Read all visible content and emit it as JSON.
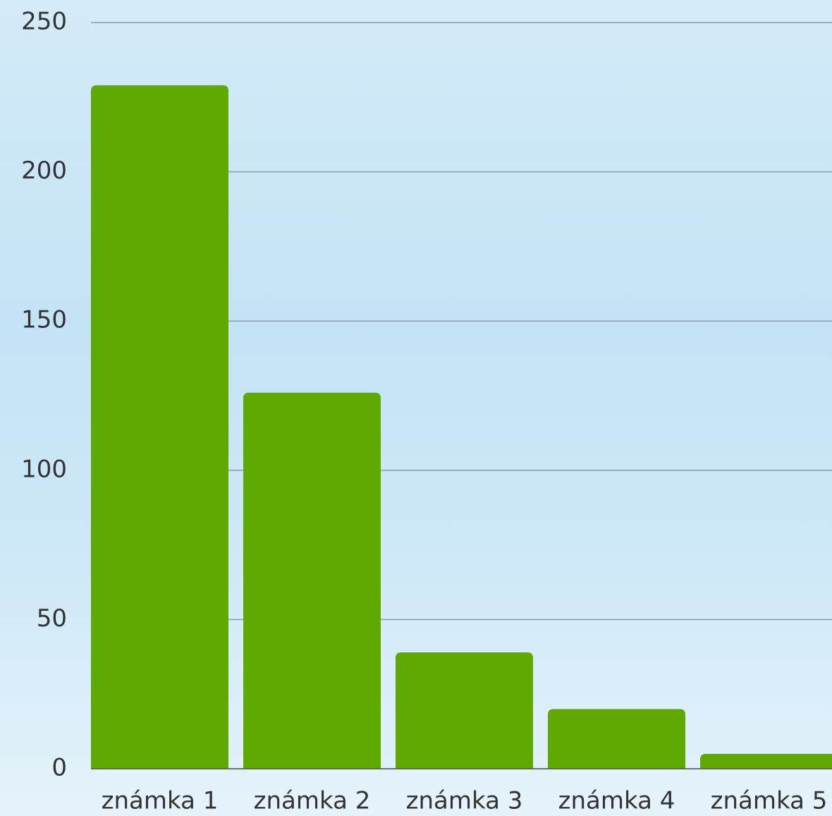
{
  "chart_data": {
    "type": "bar",
    "categories": [
      "známka 1",
      "známka 2",
      "známka 3",
      "známka 4",
      "známka 5"
    ],
    "values": [
      229,
      126,
      39,
      20,
      5
    ],
    "color": "#5faa00",
    "ylim": [
      0,
      250
    ],
    "yticks": [
      0,
      50,
      100,
      150,
      200,
      250
    ],
    "grid": true
  }
}
